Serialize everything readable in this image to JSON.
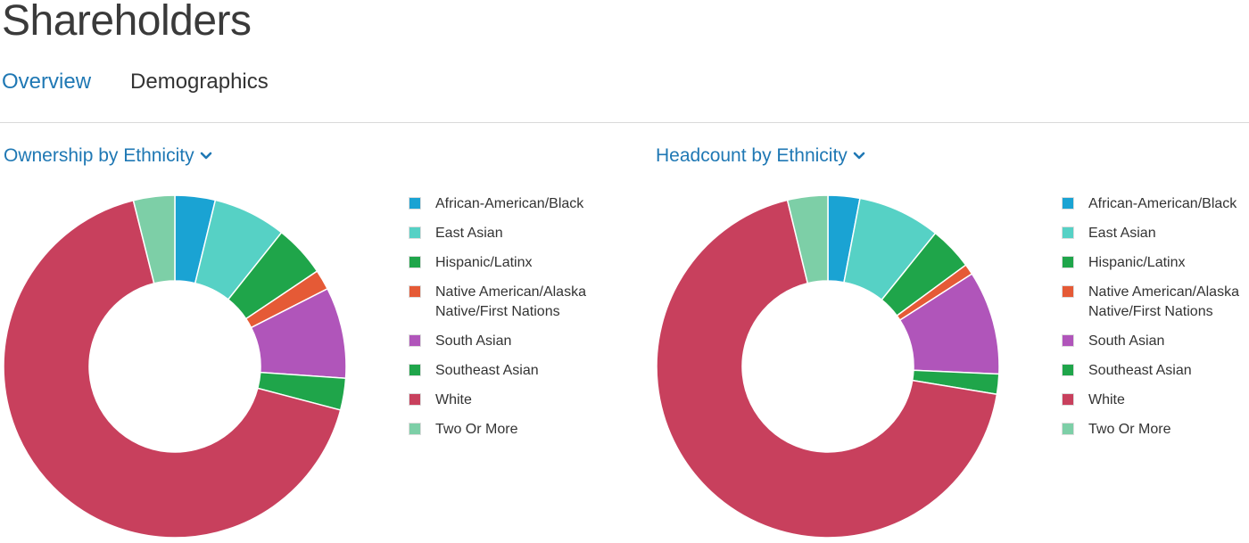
{
  "page": {
    "title": "Shareholders"
  },
  "tabs": [
    {
      "label": "Overview",
      "active": true
    },
    {
      "label": "Demographics",
      "active": false
    }
  ],
  "legend": [
    {
      "label": "African-American/Black",
      "color": "#1aa3d3"
    },
    {
      "label": "East Asian",
      "color": "#56d1c5"
    },
    {
      "label": "Hispanic/Latinx",
      "color": "#1fa54a"
    },
    {
      "label": "Native American/Alaska\nNative/First Nations",
      "color": "#e55a36"
    },
    {
      "label": "South Asian",
      "color": "#b055ba"
    },
    {
      "label": "Southeast Asian",
      "color": "#1fa54a"
    },
    {
      "label": "White",
      "color": "#c8405d"
    },
    {
      "label": "Two Or More",
      "color": "#7dcfa7"
    }
  ],
  "chart_data": [
    {
      "type": "pie",
      "donut": true,
      "title": "Ownership by Ethnicity",
      "categories": [
        "African-American/Black",
        "East Asian",
        "Hispanic/Latinx",
        "Native American/Alaska Native/First Nations",
        "South Asian",
        "Southeast Asian",
        "White",
        "Two Or More"
      ],
      "values": [
        3.8,
        6.9,
        4.9,
        1.9,
        8.6,
        3.0,
        67.0,
        3.9
      ],
      "unit": "%",
      "colors": [
        "#1aa3d3",
        "#56d1c5",
        "#1fa54a",
        "#e55a36",
        "#b055ba",
        "#1fa54a",
        "#c8405d",
        "#7dcfa7"
      ]
    },
    {
      "type": "pie",
      "donut": true,
      "title": "Headcount by Ethnicity",
      "categories": [
        "African-American/Black",
        "East Asian",
        "Hispanic/Latinx",
        "Native American/Alaska Native/First Nations",
        "South Asian",
        "Southeast Asian",
        "White",
        "Two Or More"
      ],
      "values": [
        3.0,
        7.8,
        4.1,
        1.0,
        9.8,
        1.9,
        68.6,
        3.8
      ],
      "unit": "%",
      "colors": [
        "#1aa3d3",
        "#56d1c5",
        "#1fa54a",
        "#e55a36",
        "#b055ba",
        "#1fa54a",
        "#c8405d",
        "#7dcfa7"
      ]
    }
  ]
}
